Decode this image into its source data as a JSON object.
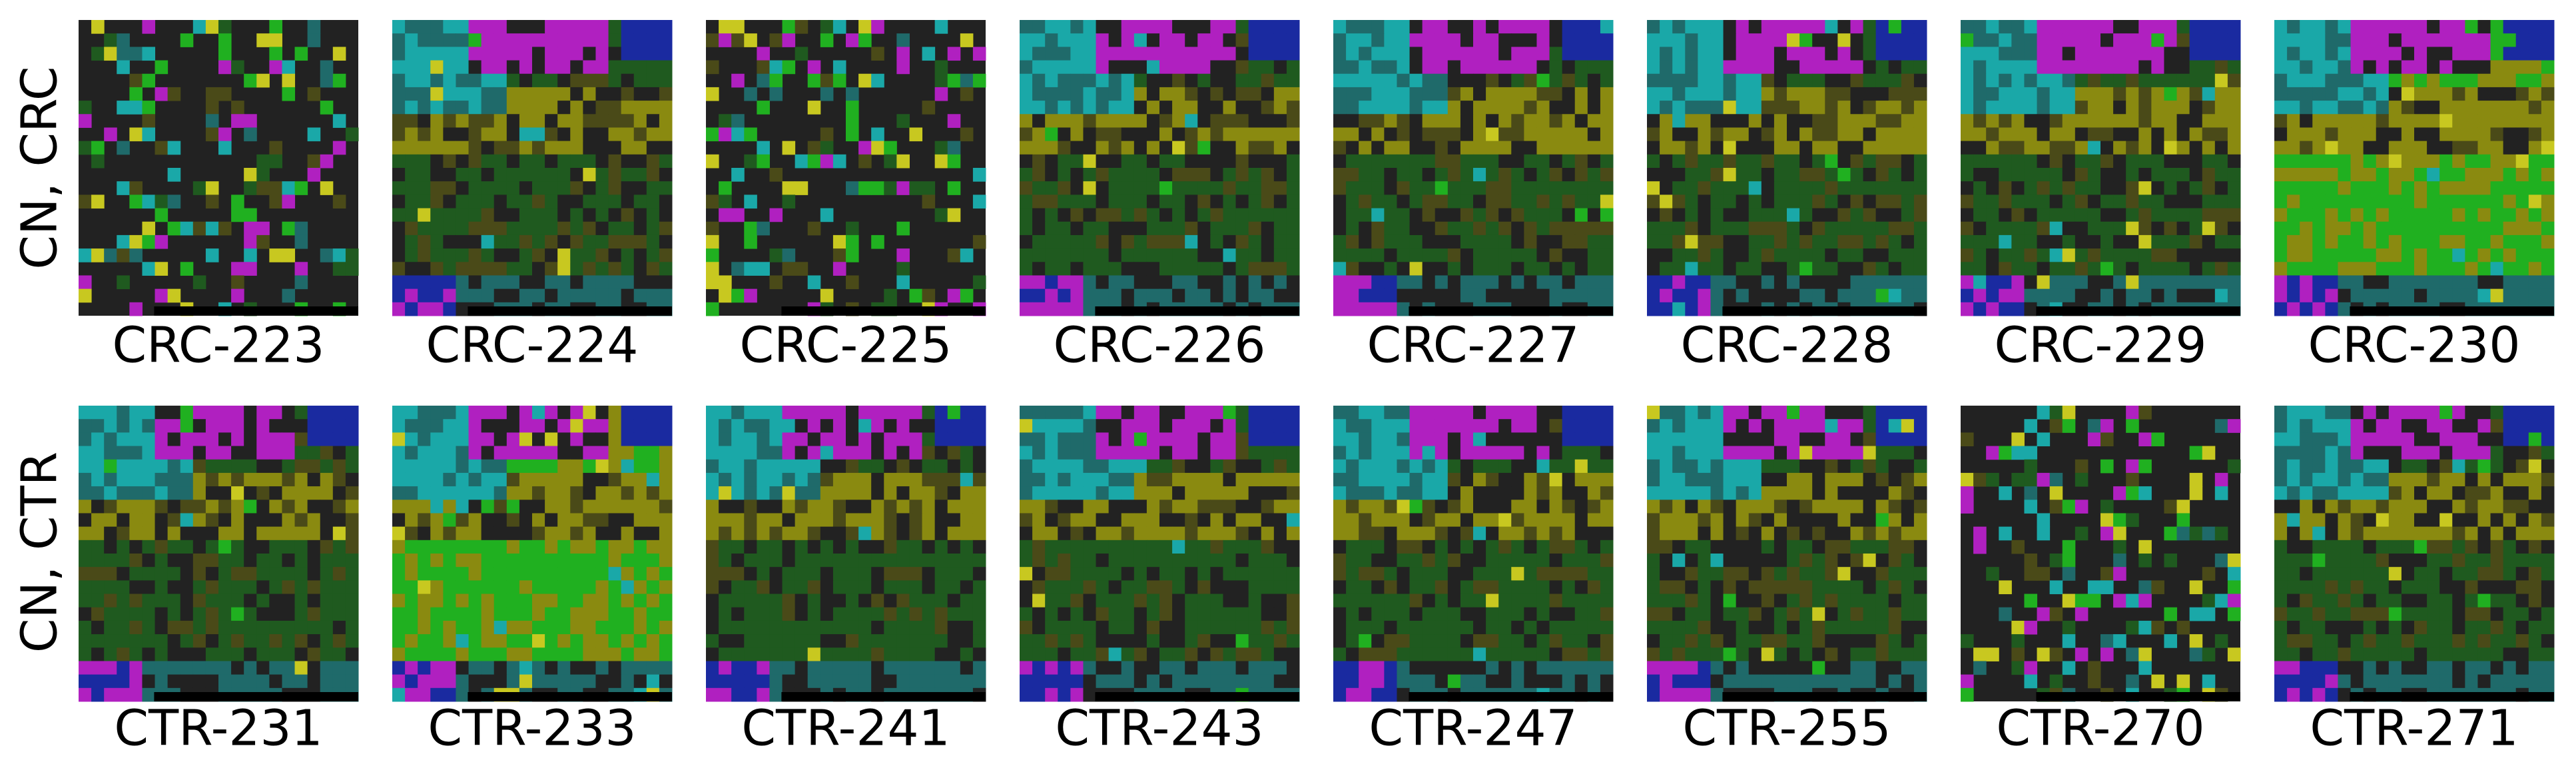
{
  "rows": [
    {
      "label": "CN, CRC",
      "panels": [
        "CRC-223",
        "CRC-224",
        "CRC-225",
        "CRC-226",
        "CRC-227",
        "CRC-228",
        "CRC-229",
        "CRC-230"
      ]
    },
    {
      "label": "CN, CTR",
      "panels": [
        "CTR-231",
        "CTR-233",
        "CTR-241",
        "CTR-243",
        "CTR-247",
        "CTR-255",
        "CTR-270",
        "CTR-271"
      ]
    }
  ]
}
